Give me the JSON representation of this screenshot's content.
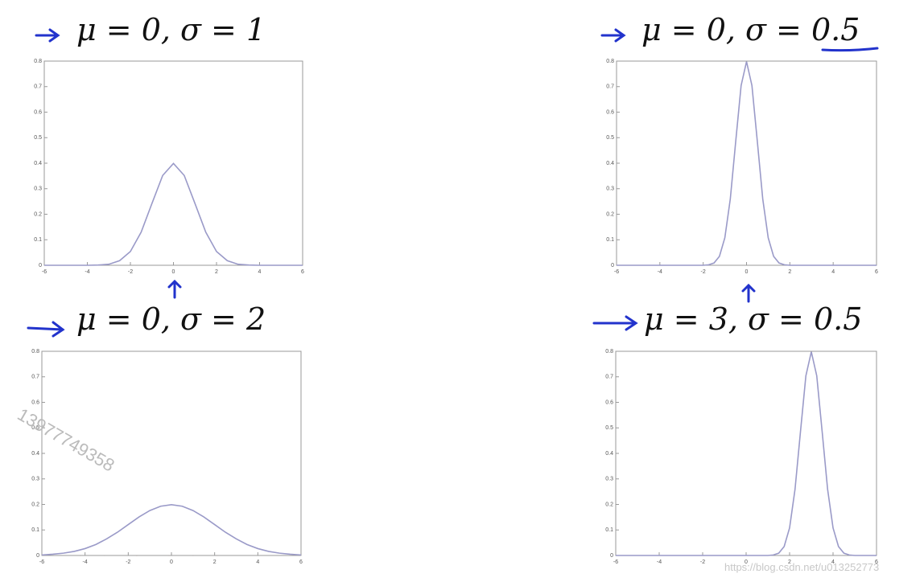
{
  "chart_data": [
    {
      "type": "line",
      "title": "μ = 0, σ = 1",
      "x": [
        -6,
        -4,
        -3.5,
        -3,
        -2.5,
        -2,
        -1.5,
        -1,
        -0.5,
        0,
        0.5,
        1,
        1.5,
        2,
        2.5,
        3,
        3.5,
        4,
        6
      ],
      "series": [
        {
          "color": "#9a9ac8",
          "values": [
            0,
            0,
            0.001,
            0.004,
            0.018,
            0.054,
            0.13,
            0.242,
            0.352,
            0.399,
            0.352,
            0.242,
            0.13,
            0.054,
            0.018,
            0.004,
            0.001,
            0,
            0
          ]
        }
      ],
      "xlim": [
        -6,
        6
      ],
      "ylim": [
        0,
        0.8
      ],
      "xticks": [
        -6,
        -4,
        -2,
        0,
        2,
        4,
        6
      ],
      "yticks": [
        0,
        0.1,
        0.2,
        0.3,
        0.4,
        0.5,
        0.6,
        0.7,
        0.8
      ]
    },
    {
      "type": "line",
      "title": "μ = 0, σ = 0.5",
      "x": [
        -6,
        -4,
        -2,
        -1.75,
        -1.5,
        -1.25,
        -1,
        -0.75,
        -0.5,
        -0.25,
        0,
        0.25,
        0.5,
        0.75,
        1,
        1.25,
        1.5,
        1.75,
        2,
        4,
        6
      ],
      "series": [
        {
          "color": "#9a9ac8",
          "values": [
            0,
            0,
            0,
            0.002,
            0.009,
            0.035,
            0.108,
            0.259,
            0.484,
            0.704,
            0.798,
            0.704,
            0.484,
            0.259,
            0.108,
            0.035,
            0.009,
            0.002,
            0,
            0,
            0
          ]
        }
      ],
      "xlim": [
        -6,
        6
      ],
      "ylim": [
        0,
        0.8
      ],
      "xticks": [
        -6,
        -4,
        -2,
        0,
        2,
        4,
        6
      ],
      "yticks": [
        0,
        0.1,
        0.2,
        0.3,
        0.4,
        0.5,
        0.6,
        0.7,
        0.8
      ]
    },
    {
      "type": "line",
      "title": "μ = 0, σ = 2",
      "x": [
        -6,
        -5.5,
        -5,
        -4.5,
        -4,
        -3.5,
        -3,
        -2.5,
        -2,
        -1.5,
        -1,
        -0.5,
        0,
        0.5,
        1,
        1.5,
        2,
        2.5,
        3,
        3.5,
        4,
        4.5,
        5,
        5.5,
        6
      ],
      "series": [
        {
          "color": "#9a9ac8",
          "values": [
            0.002,
            0.005,
            0.009,
            0.016,
            0.027,
            0.043,
            0.065,
            0.091,
            0.121,
            0.151,
            0.176,
            0.193,
            0.199,
            0.193,
            0.176,
            0.151,
            0.121,
            0.091,
            0.065,
            0.043,
            0.027,
            0.016,
            0.009,
            0.005,
            0.002
          ]
        }
      ],
      "xlim": [
        -6,
        6
      ],
      "ylim": [
        0,
        0.8
      ],
      "xticks": [
        -6,
        -4,
        -2,
        0,
        2,
        4,
        6
      ],
      "yticks": [
        0,
        0.1,
        0.2,
        0.3,
        0.4,
        0.5,
        0.6,
        0.7,
        0.8
      ]
    },
    {
      "type": "line",
      "title": "μ = 3, σ = 0.5",
      "x": [
        -6,
        -4,
        -2,
        0,
        1,
        1.25,
        1.5,
        1.75,
        2,
        2.25,
        2.5,
        2.75,
        3,
        3.25,
        3.5,
        3.75,
        4,
        4.25,
        4.5,
        4.75,
        5,
        6
      ],
      "series": [
        {
          "color": "#9a9ac8",
          "values": [
            0,
            0,
            0,
            0,
            0,
            0.002,
            0.009,
            0.035,
            0.108,
            0.259,
            0.484,
            0.704,
            0.798,
            0.704,
            0.484,
            0.259,
            0.108,
            0.035,
            0.009,
            0.002,
            0,
            0
          ]
        }
      ],
      "xlim": [
        -6,
        6
      ],
      "ylim": [
        0,
        0.8
      ],
      "xticks": [
        -6,
        -4,
        -2,
        0,
        2,
        4,
        6
      ],
      "yticks": [
        0,
        0.1,
        0.2,
        0.3,
        0.4,
        0.5,
        0.6,
        0.7,
        0.8
      ]
    }
  ],
  "watermarks": [
    "13977749358",
    "https://blog.csdn.net/u013252773"
  ]
}
